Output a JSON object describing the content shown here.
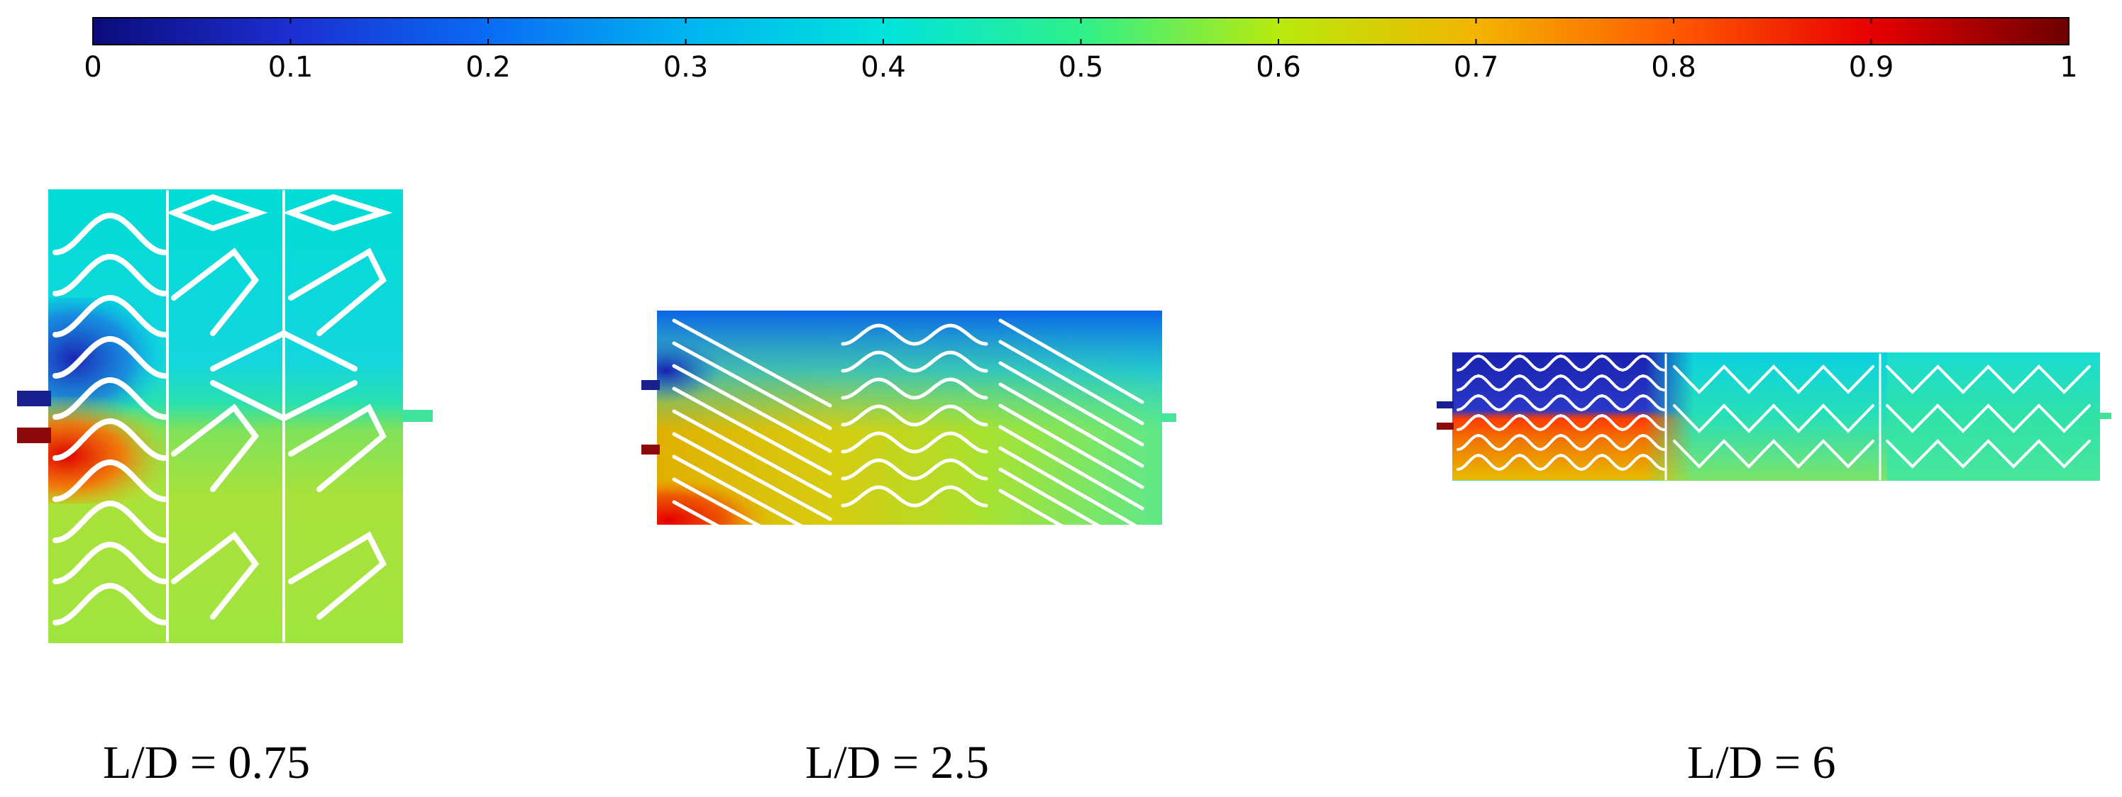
{
  "colorbar": {
    "min": 0,
    "max": 1,
    "colormap": "rainbow (blue-cyan-green-yellow-red)",
    "tick_labels": [
      "0",
      "0.1",
      "0.2",
      "0.3",
      "0.4",
      "0.5",
      "0.6",
      "0.7",
      "0.8",
      "0.9",
      "1"
    ]
  },
  "panels": [
    {
      "label": "L/D = 0.75"
    },
    {
      "label": "L/D = 2.5"
    },
    {
      "label": "L/D = 6"
    }
  ],
  "colors": {
    "cold_inlet": "#1a1f8f",
    "hot_inlet": "#8c0a0a",
    "outlet": "#3fe39a",
    "baffle": "#ffffff"
  }
}
